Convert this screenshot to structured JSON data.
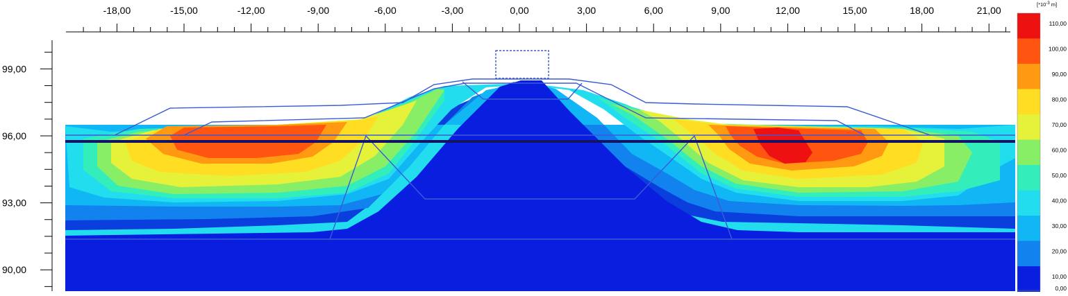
{
  "plot": {
    "x_axis": {
      "ticks": [
        {
          "value": -18,
          "label": "-18,00"
        },
        {
          "value": -15,
          "label": "-15,00"
        },
        {
          "value": -12,
          "label": "-12,00"
        },
        {
          "value": -9,
          "label": "-9,00"
        },
        {
          "value": -6,
          "label": "-6,00"
        },
        {
          "value": -3,
          "label": "-3,00"
        },
        {
          "value": 0,
          "label": "0,00"
        },
        {
          "value": 3,
          "label": "3,00"
        },
        {
          "value": 6,
          "label": "6,00"
        },
        {
          "value": 9,
          "label": "9,00"
        },
        {
          "value": 12,
          "label": "12,00"
        },
        {
          "value": 15,
          "label": "15,00"
        },
        {
          "value": 18,
          "label": "18,00"
        },
        {
          "value": 21,
          "label": "21,00"
        }
      ]
    },
    "y_axis": {
      "ticks": [
        {
          "value": 99,
          "label": "99,00"
        },
        {
          "value": 96,
          "label": "96,00"
        },
        {
          "value": 93,
          "label": "93,00"
        },
        {
          "value": 90,
          "label": "90,00"
        }
      ]
    }
  },
  "legend": {
    "unit_prefix": "[*10",
    "unit_exp": "-3",
    "unit_suffix": " m]",
    "bands": [
      {
        "label": "110,00",
        "color": "#ee1111"
      },
      {
        "label": "100,00",
        "color": "#ff5511"
      },
      {
        "label": "90,00",
        "color": "#ff9911"
      },
      {
        "label": "80,00",
        "color": "#ffdd22"
      },
      {
        "label": "70,00",
        "color": "#e6f23a"
      },
      {
        "label": "60,00",
        "color": "#88ee66"
      },
      {
        "label": "50,00",
        "color": "#33eebb"
      },
      {
        "label": "40,00",
        "color": "#22ddee"
      },
      {
        "label": "30,00",
        "color": "#11b6f5"
      },
      {
        "label": "20,00",
        "color": "#1182ee"
      },
      {
        "label": "10,00",
        "color": "#0a3fdd"
      },
      {
        "label": "0,00",
        "color": ""
      }
    ]
  },
  "colors": {
    "band_0": "#0a1ee0",
    "band_10": "#0a3fdd",
    "band_20": "#1182ee",
    "band_30": "#11b6f5",
    "band_40": "#22ddee",
    "band_50": "#33eebb",
    "band_60": "#88ee66",
    "band_70": "#e6f23a",
    "band_80": "#ffdd22",
    "band_90": "#ff9911",
    "band_100": "#ff5511",
    "band_110": "#ee1111",
    "geometry_line": "#3b5bd6",
    "water_line": "#141466"
  }
}
